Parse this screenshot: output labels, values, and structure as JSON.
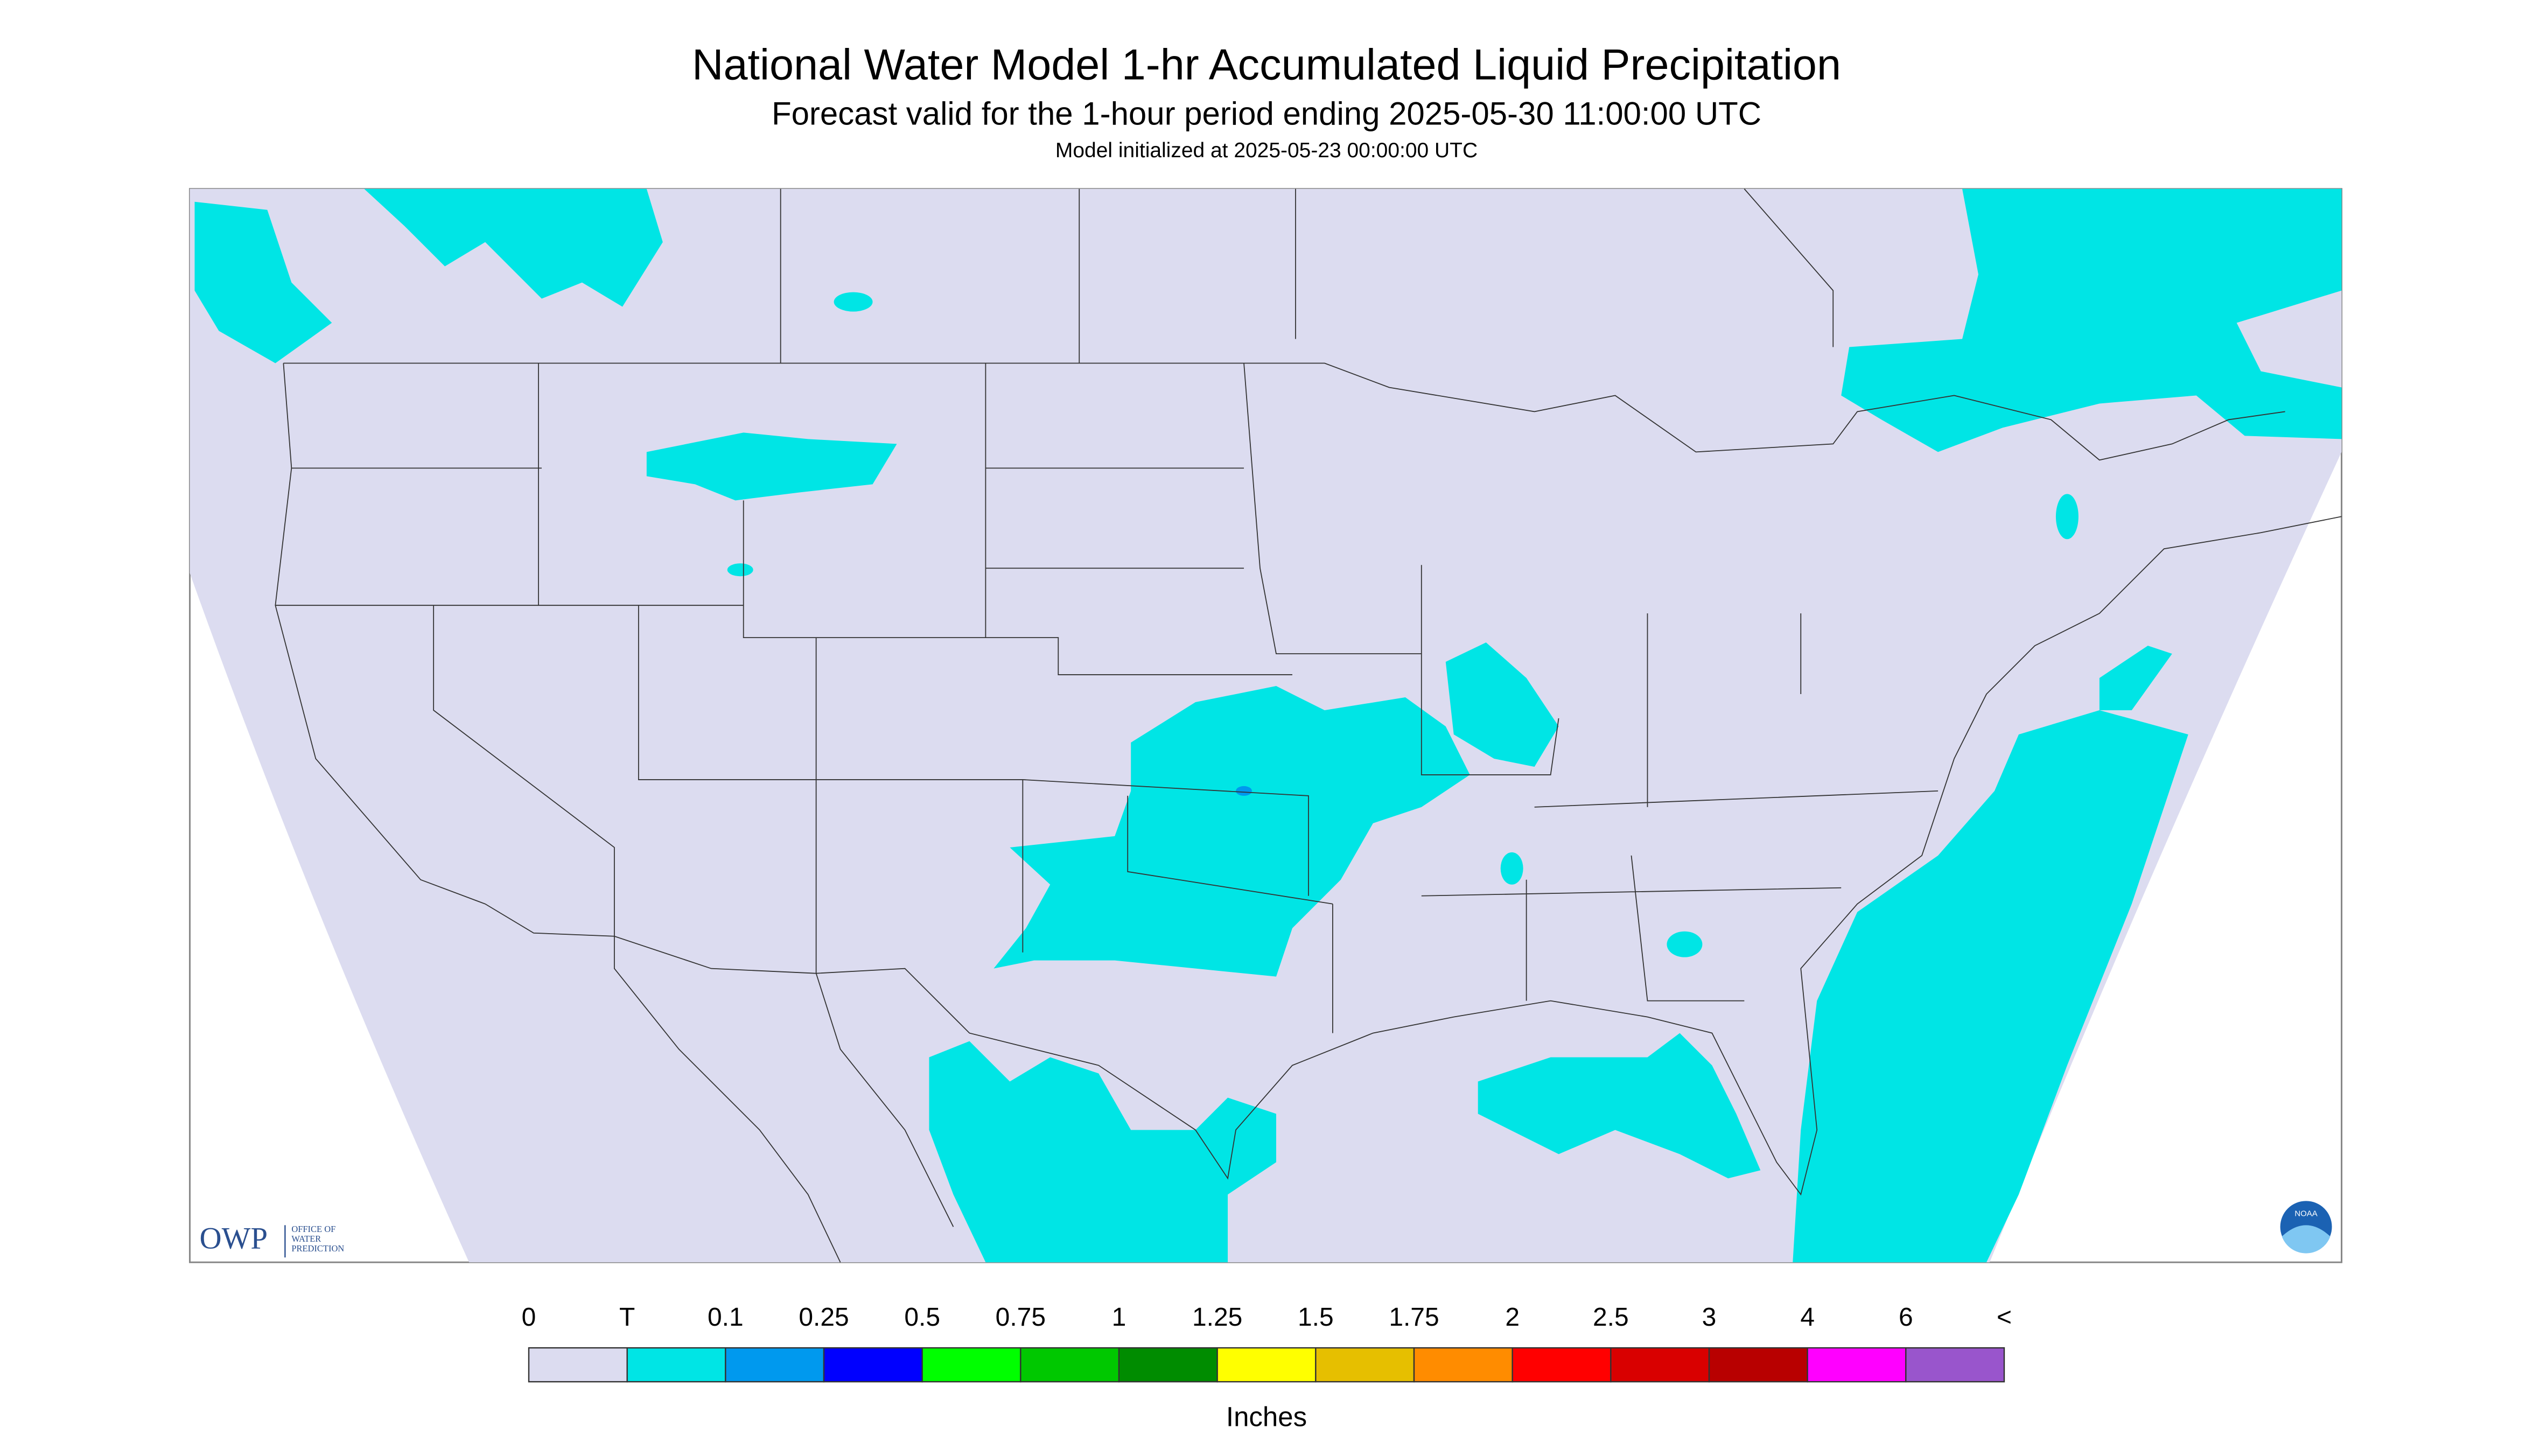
{
  "header": {
    "title": "National Water Model 1-hr Accumulated Liquid Precipitation",
    "subtitle": "Forecast valid for the 1-hour period ending 2025-05-30 11:00:00 UTC",
    "note": "Model initialized at 2025-05-23 00:00:00 UTC"
  },
  "legend": {
    "labels": [
      "0",
      "T",
      "0.1",
      "0.25",
      "0.5",
      "0.75",
      "1",
      "1.25",
      "1.5",
      "1.75",
      "2",
      "2.5",
      "3",
      "4",
      "6",
      "<"
    ],
    "colors": [
      "#dcdcf0",
      "#00e5e5",
      "#0099ee",
      "#0000ff",
      "#00ff00",
      "#00c800",
      "#008c00",
      "#ffff00",
      "#e6bf00",
      "#ff8c00",
      "#ff0000",
      "#d90000",
      "#b80000",
      "#ff00ff",
      "#9955cc"
    ],
    "unit": "Inches"
  },
  "logos": {
    "owp": "OWP",
    "owp_name": [
      "OFFICE OF",
      "WATER",
      "PREDICTION"
    ],
    "noaa": "NOAA"
  }
}
